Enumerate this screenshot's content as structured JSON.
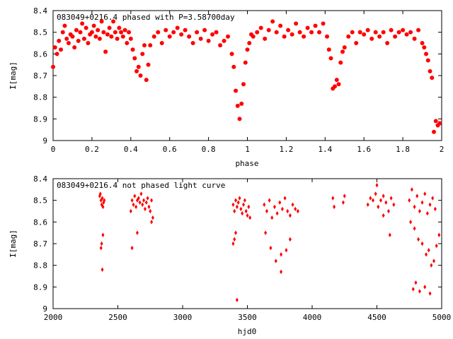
{
  "chart_data": [
    {
      "type": "scatter",
      "title": "083049+0216.4 phased with P=3.58700day",
      "xlabel": "phase",
      "ylabel": "I[mag]",
      "xlim": [
        0,
        2
      ],
      "ylim": [
        9,
        8.4
      ],
      "y_inverted": true,
      "x_ticks": [
        "0",
        "0.2",
        "0.4",
        "0.6",
        "0.8",
        "1",
        "1.2",
        "1.4",
        "1.6",
        "1.8",
        "2"
      ],
      "y_ticks": [
        "8.4",
        "8.5",
        "8.6",
        "8.7",
        "8.8",
        "8.9",
        "9"
      ],
      "marker_color": "#ff0000",
      "marker": "filled-circle",
      "series": [
        {
          "x": [
            0.0,
            0.01,
            0.02,
            0.03,
            0.04,
            0.05,
            0.06,
            0.07,
            0.08,
            0.09,
            0.1,
            0.11,
            0.12,
            0.13,
            0.14,
            0.15,
            0.16,
            0.17,
            0.18,
            0.19,
            0.2,
            0.21,
            0.22,
            0.23,
            0.24,
            0.25,
            0.26,
            0.27,
            0.28,
            0.29,
            0.3,
            0.31,
            0.32,
            0.33,
            0.34,
            0.35,
            0.36,
            0.37,
            0.38,
            0.39,
            0.4,
            0.41,
            0.42,
            0.43,
            0.44,
            0.45,
            0.46,
            0.47,
            0.48,
            0.49,
            0.5,
            0.52,
            0.54,
            0.56,
            0.58,
            0.6,
            0.62,
            0.64,
            0.66,
            0.68,
            0.7,
            0.72,
            0.74,
            0.76,
            0.78,
            0.8,
            0.82,
            0.84,
            0.86,
            0.88,
            0.9,
            0.92,
            0.93,
            0.94,
            0.95,
            0.96,
            0.97,
            0.98,
            0.99,
            1.0,
            1.01,
            1.02,
            1.03,
            1.05,
            1.07,
            1.09,
            1.11,
            1.13,
            1.15,
            1.17,
            1.19,
            1.21,
            1.23,
            1.25,
            1.27,
            1.29,
            1.31,
            1.33,
            1.35,
            1.37,
            1.39,
            1.41,
            1.42,
            1.43,
            1.44,
            1.45,
            1.46,
            1.47,
            1.48,
            1.49,
            1.5,
            1.52,
            1.54,
            1.56,
            1.58,
            1.6,
            1.62,
            1.64,
            1.66,
            1.68,
            1.7,
            1.72,
            1.74,
            1.76,
            1.78,
            1.8,
            1.82,
            1.84,
            1.86,
            1.88,
            1.9,
            1.91,
            1.92,
            1.93,
            1.94,
            1.95,
            1.96,
            1.97,
            1.98,
            1.99
          ],
          "y": [
            8.66,
            8.57,
            8.6,
            8.54,
            8.58,
            8.5,
            8.47,
            8.53,
            8.55,
            8.51,
            8.52,
            8.57,
            8.49,
            8.54,
            8.5,
            8.46,
            8.53,
            8.48,
            8.55,
            8.51,
            8.5,
            8.47,
            8.52,
            8.49,
            8.53,
            8.45,
            8.5,
            8.59,
            8.51,
            8.48,
            8.52,
            8.45,
            8.5,
            8.53,
            8.48,
            8.5,
            8.52,
            8.49,
            8.55,
            8.5,
            8.53,
            8.58,
            8.62,
            8.68,
            8.66,
            8.7,
            8.6,
            8.56,
            8.72,
            8.65,
            8.56,
            8.52,
            8.5,
            8.55,
            8.49,
            8.52,
            8.5,
            8.48,
            8.51,
            8.49,
            8.52,
            8.55,
            8.5,
            8.53,
            8.49,
            8.54,
            8.51,
            8.5,
            8.56,
            8.54,
            8.52,
            8.6,
            8.66,
            8.77,
            8.84,
            8.9,
            8.83,
            8.74,
            8.64,
            8.58,
            8.55,
            8.51,
            8.52,
            8.5,
            8.48,
            8.53,
            8.49,
            8.45,
            8.5,
            8.47,
            8.52,
            8.49,
            8.51,
            8.46,
            8.5,
            8.52,
            8.48,
            8.5,
            8.47,
            8.5,
            8.46,
            8.52,
            8.58,
            8.62,
            8.76,
            8.75,
            8.72,
            8.74,
            8.64,
            8.59,
            8.57,
            8.52,
            8.5,
            8.55,
            8.5,
            8.51,
            8.49,
            8.53,
            8.5,
            8.52,
            8.5,
            8.55,
            8.49,
            8.52,
            8.5,
            8.49,
            8.51,
            8.5,
            8.53,
            8.49,
            8.55,
            8.57,
            8.6,
            8.63,
            8.68,
            8.71,
            8.96,
            8.91,
            8.93,
            8.92
          ]
        }
      ]
    },
    {
      "type": "scatter",
      "title": "083049+0216.4 not phased light curve",
      "xlabel": "hjd0",
      "ylabel": "I[mag]",
      "xlim": [
        2000,
        5000
      ],
      "ylim": [
        9,
        8.4
      ],
      "y_inverted": true,
      "x_ticks": [
        "2000",
        "2500",
        "3000",
        "3500",
        "4000",
        "4500",
        "5000"
      ],
      "y_ticks": [
        "8.4",
        "8.5",
        "8.6",
        "8.7",
        "8.8",
        "8.9",
        "9"
      ],
      "marker_color": "#ff0000",
      "marker": "diamond",
      "series": [
        {
          "x": [
            2360,
            2365,
            2370,
            2375,
            2380,
            2385,
            2390,
            2395,
            2370,
            2385,
            2375,
            2380,
            2600,
            2610,
            2620,
            2630,
            2640,
            2650,
            2660,
            2670,
            2680,
            2690,
            2700,
            2710,
            2720,
            2730,
            2740,
            2750,
            2760,
            2770,
            2610,
            2650,
            2760,
            3390,
            3400,
            3410,
            3420,
            3430,
            3440,
            3450,
            3460,
            3470,
            3480,
            3490,
            3500,
            3510,
            3520,
            3400,
            3410,
            3390,
            3420,
            3630,
            3650,
            3670,
            3690,
            3710,
            3730,
            3750,
            3770,
            3790,
            3810,
            3830,
            3850,
            3870,
            3640,
            3680,
            3720,
            3760,
            3800,
            3830,
            3760,
            3890,
            4160,
            4170,
            4240,
            4250,
            4430,
            4450,
            4470,
            4490,
            4510,
            4530,
            4550,
            4570,
            4590,
            4610,
            4630,
            4500,
            4550,
            4600,
            4750,
            4770,
            4790,
            4810,
            4830,
            4850,
            4870,
            4890,
            4910,
            4930,
            4950,
            4760,
            4790,
            4820,
            4850,
            4880,
            4900,
            4920,
            4940,
            4960,
            4980,
            4780,
            4800,
            4830,
            4870,
            4910
          ],
          "y": [
            8.48,
            8.47,
            8.5,
            8.52,
            8.49,
            8.53,
            8.51,
            8.5,
            8.72,
            8.66,
            8.7,
            8.82,
            8.55,
            8.5,
            8.52,
            8.48,
            8.53,
            8.5,
            8.49,
            8.51,
            8.47,
            8.52,
            8.5,
            8.54,
            8.51,
            8.49,
            8.53,
            8.55,
            8.5,
            8.58,
            8.72,
            8.65,
            8.6,
            8.52,
            8.55,
            8.5,
            8.53,
            8.51,
            8.49,
            8.54,
            8.56,
            8.52,
            8.5,
            8.55,
            8.57,
            8.53,
            8.58,
            8.68,
            8.65,
            8.7,
            8.96,
            8.52,
            8.55,
            8.5,
            8.58,
            8.53,
            8.56,
            8.51,
            8.54,
            8.49,
            8.55,
            8.57,
            8.52,
            8.54,
            8.65,
            8.72,
            8.78,
            8.75,
            8.73,
            8.68,
            8.83,
            8.55,
            8.49,
            8.53,
            8.51,
            8.48,
            8.52,
            8.49,
            8.5,
            8.47,
            8.53,
            8.5,
            8.48,
            8.51,
            8.55,
            8.49,
            8.52,
            8.43,
            8.57,
            8.66,
            8.5,
            8.45,
            8.53,
            8.48,
            8.55,
            8.51,
            8.47,
            8.56,
            8.52,
            8.49,
            8.54,
            8.6,
            8.63,
            8.68,
            8.7,
            8.75,
            8.73,
            8.8,
            8.78,
            8.71,
            8.66,
            8.91,
            8.88,
            8.92,
            8.9,
            8.93
          ]
        }
      ]
    }
  ]
}
